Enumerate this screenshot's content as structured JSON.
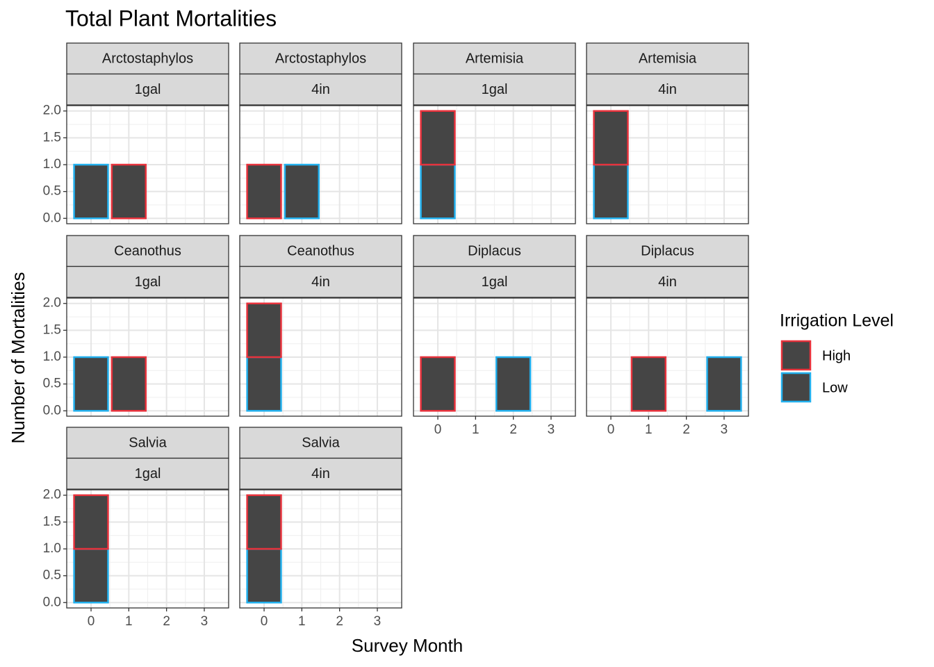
{
  "chart_data": {
    "type": "bar",
    "title": "Total Plant Mortalities",
    "x_label": "Survey Month",
    "y_label": "Number of Mortalities",
    "legend_title": "Irrigation Level",
    "bar_fill": "#454545",
    "grid": true,
    "stacked": true,
    "series": [
      {
        "name": "High",
        "color": "#e8323c"
      },
      {
        "name": "Low",
        "color": "#22b0ee"
      }
    ],
    "x": [
      0,
      1,
      2,
      3
    ],
    "xlim": [
      -0.645,
      3.645
    ],
    "xticks": [
      0,
      1,
      2,
      3
    ],
    "ylim": [
      -0.1,
      2.1
    ],
    "yticks": [
      {
        "value": 0,
        "label": "0.0"
      },
      {
        "value": 0.5,
        "label": "0.5"
      },
      {
        "value": 1,
        "label": "1.0"
      },
      {
        "value": 1.5,
        "label": "1.5"
      },
      {
        "value": 2,
        "label": "2.0"
      }
    ],
    "panels": [
      {
        "strips": [
          "Arctostaphylos",
          "1gal"
        ],
        "series": [
          {
            "values": [
              null,
              1,
              null,
              null
            ]
          },
          {
            "values": [
              1,
              null,
              null,
              null
            ]
          }
        ]
      },
      {
        "strips": [
          "Arctostaphylos",
          "4in"
        ],
        "series": [
          {
            "values": [
              1,
              null,
              null,
              null
            ]
          },
          {
            "values": [
              null,
              1,
              null,
              null
            ]
          }
        ]
      },
      {
        "strips": [
          "Artemisia",
          "1gal"
        ],
        "series": [
          {
            "values": [
              1,
              null,
              null,
              null
            ]
          },
          {
            "values": [
              1,
              null,
              null,
              null
            ]
          }
        ]
      },
      {
        "strips": [
          "Artemisia",
          "4in"
        ],
        "series": [
          {
            "values": [
              1,
              null,
              null,
              null
            ]
          },
          {
            "values": [
              1,
              null,
              null,
              null
            ]
          }
        ]
      },
      {
        "strips": [
          "Ceanothus",
          "1gal"
        ],
        "series": [
          {
            "values": [
              null,
              1,
              null,
              null
            ]
          },
          {
            "values": [
              1,
              null,
              null,
              null
            ]
          }
        ]
      },
      {
        "strips": [
          "Ceanothus",
          "4in"
        ],
        "series": [
          {
            "values": [
              1,
              null,
              null,
              null
            ]
          },
          {
            "values": [
              1,
              null,
              null,
              null
            ]
          }
        ]
      },
      {
        "strips": [
          "Diplacus",
          "1gal"
        ],
        "series": [
          {
            "values": [
              1,
              null,
              null,
              null
            ]
          },
          {
            "values": [
              null,
              null,
              1,
              null
            ]
          }
        ]
      },
      {
        "strips": [
          "Diplacus",
          "4in"
        ],
        "series": [
          {
            "values": [
              null,
              1,
              null,
              null
            ]
          },
          {
            "values": [
              null,
              null,
              null,
              1
            ]
          }
        ]
      },
      {
        "strips": [
          "Salvia",
          "1gal"
        ],
        "series": [
          {
            "values": [
              1,
              null,
              null,
              null
            ]
          },
          {
            "values": [
              1,
              null,
              null,
              null
            ]
          }
        ]
      },
      {
        "strips": [
          "Salvia",
          "4in"
        ],
        "series": [
          {
            "values": [
              1,
              null,
              null,
              null
            ]
          },
          {
            "values": [
              1,
              null,
              null,
              null
            ]
          }
        ]
      }
    ]
  }
}
